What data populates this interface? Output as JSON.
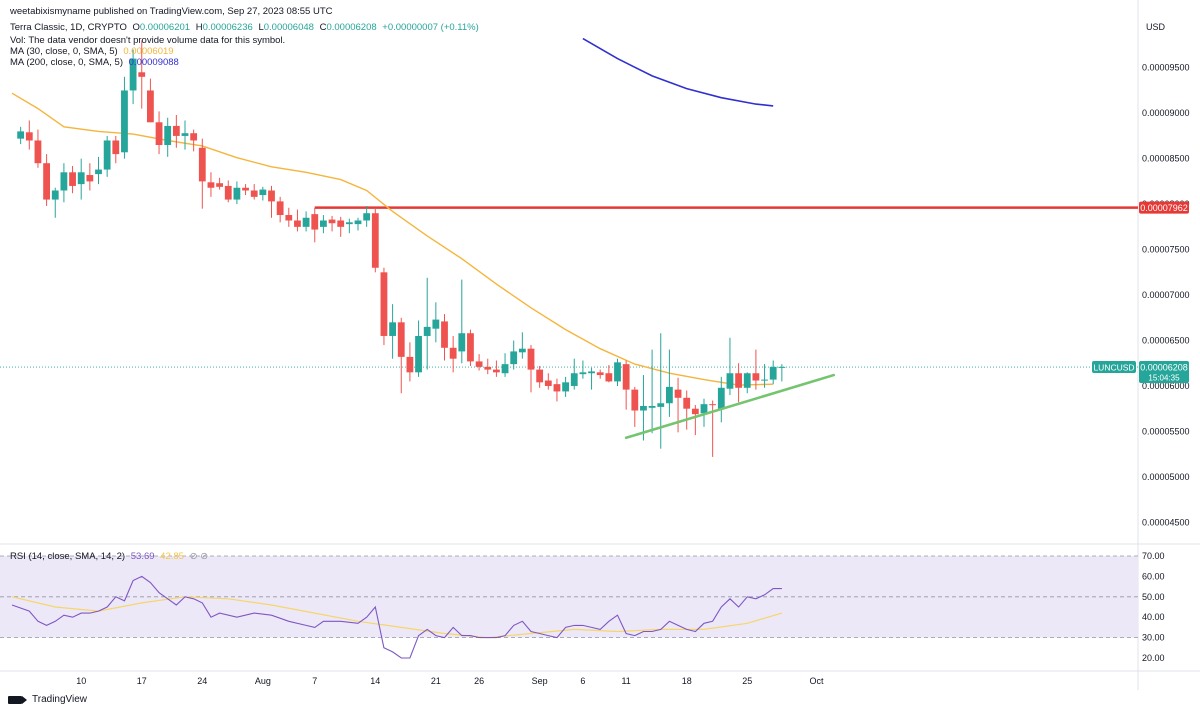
{
  "header": {
    "publisher": "weetabixismyname published on TradingView.com, Sep 27, 2023 08:55 UTC",
    "symbol_line": "Terra Classic, 1D, CRYPTO",
    "o_label": "O",
    "o_value": "0.00006201",
    "h_label": "H",
    "h_value": "0.00006236",
    "l_label": "L",
    "l_value": "0.00006048",
    "c_label": "C",
    "c_value": "0.00006208",
    "change": "+0.00000007 (+0.11%)",
    "vol_note": "Vol: The data vendor doesn't provide volume data for this symbol.",
    "ma30_label": "MA (30, close, 0, SMA, 5)",
    "ma30_value": "0.00006019",
    "ma200_label": "MA (200, close, 0, SMA, 5)",
    "ma200_value": "0.00009088",
    "rsi_label": "RSI (14, close, SMA, 14, 2)",
    "rsi_value": "53.69",
    "rsi_ma_value": "42.85"
  },
  "footer": {
    "logo_text": "TradingView"
  },
  "colors": {
    "up": "#26a69a",
    "down": "#ef5350",
    "ma30": "#f5b53d",
    "ma200": "#3030d0",
    "resistance": "#e53935",
    "trendline": "#74c470",
    "rsi": "#7e57c2",
    "rsi_ma": "#f5d66a",
    "rsi_band": "#ede8f8",
    "price_tag": "#26a69a"
  },
  "chart_data": {
    "type": "candlestick",
    "currency": "USD",
    "price_axis": {
      "ticks": [
        "0.00009500",
        "0.00009000",
        "0.00008500",
        "0.00008000",
        "0.00007500",
        "0.00007000",
        "0.00006500",
        "0.00006000",
        "0.00005500",
        "0.00005000",
        "0.00004500"
      ],
      "tick_values": [
        9.5e-05,
        9e-05,
        8.5e-05,
        8e-05,
        7.5e-05,
        7e-05,
        6.5e-05,
        6e-05,
        5.5e-05,
        5e-05,
        4.5e-05
      ]
    },
    "x_axis": {
      "labels": [
        "10",
        "17",
        "24",
        "Aug",
        "7",
        "14",
        "21",
        "26",
        "Sep",
        "6",
        "11",
        "18",
        "25",
        "Oct"
      ],
      "label_positions": [
        8,
        15,
        22,
        29,
        35,
        42,
        49,
        54,
        61,
        66,
        71,
        78,
        85,
        93
      ]
    },
    "candles": [
      {
        "i": 1,
        "o": 8.72,
        "h": 8.85,
        "l": 8.66,
        "c": 8.8
      },
      {
        "i": 2,
        "o": 8.79,
        "h": 8.92,
        "l": 8.6,
        "c": 8.7
      },
      {
        "i": 3,
        "o": 8.7,
        "h": 8.82,
        "l": 8.4,
        "c": 8.45
      },
      {
        "i": 4,
        "o": 8.45,
        "h": 8.55,
        "l": 7.98,
        "c": 8.05
      },
      {
        "i": 5,
        "o": 8.05,
        "h": 8.18,
        "l": 7.85,
        "c": 8.15
      },
      {
        "i": 6,
        "o": 8.15,
        "h": 8.45,
        "l": 8.02,
        "c": 8.35
      },
      {
        "i": 7,
        "o": 8.35,
        "h": 8.42,
        "l": 8.12,
        "c": 8.2
      },
      {
        "i": 8,
        "o": 8.22,
        "h": 8.5,
        "l": 8.05,
        "c": 8.35
      },
      {
        "i": 9,
        "o": 8.32,
        "h": 8.45,
        "l": 8.15,
        "c": 8.25
      },
      {
        "i": 10,
        "o": 8.33,
        "h": 8.52,
        "l": 8.22,
        "c": 8.38
      },
      {
        "i": 11,
        "o": 8.38,
        "h": 8.75,
        "l": 8.3,
        "c": 8.7
      },
      {
        "i": 12,
        "o": 8.7,
        "h": 8.75,
        "l": 8.45,
        "c": 8.55
      },
      {
        "i": 13,
        "o": 8.57,
        "h": 9.4,
        "l": 8.5,
        "c": 9.25
      },
      {
        "i": 14,
        "o": 9.25,
        "h": 9.7,
        "l": 9.1,
        "c": 9.6
      },
      {
        "i": 15,
        "o": 9.45,
        "h": 9.8,
        "l": 9.05,
        "c": 9.4
      },
      {
        "i": 16,
        "o": 9.25,
        "h": 9.38,
        "l": 8.9,
        "c": 8.9
      },
      {
        "i": 17,
        "o": 8.9,
        "h": 9.02,
        "l": 8.55,
        "c": 8.65
      },
      {
        "i": 18,
        "o": 8.65,
        "h": 8.95,
        "l": 8.52,
        "c": 8.86
      },
      {
        "i": 19,
        "o": 8.86,
        "h": 8.98,
        "l": 8.62,
        "c": 8.75
      },
      {
        "i": 20,
        "o": 8.75,
        "h": 8.92,
        "l": 8.6,
        "c": 8.78
      },
      {
        "i": 21,
        "o": 8.78,
        "h": 8.82,
        "l": 8.58,
        "c": 8.7
      },
      {
        "i": 22,
        "o": 8.62,
        "h": 8.72,
        "l": 7.95,
        "c": 8.25
      },
      {
        "i": 23,
        "o": 8.24,
        "h": 8.35,
        "l": 8.08,
        "c": 8.18
      },
      {
        "i": 24,
        "o": 8.23,
        "h": 8.29,
        "l": 8.16,
        "c": 8.19
      },
      {
        "i": 25,
        "o": 8.2,
        "h": 8.26,
        "l": 8.02,
        "c": 8.05
      },
      {
        "i": 26,
        "o": 8.05,
        "h": 8.25,
        "l": 8.0,
        "c": 8.18
      },
      {
        "i": 27,
        "o": 8.18,
        "h": 8.22,
        "l": 8.1,
        "c": 8.15
      },
      {
        "i": 28,
        "o": 8.15,
        "h": 8.22,
        "l": 8.05,
        "c": 8.08
      },
      {
        "i": 29,
        "o": 8.1,
        "h": 8.19,
        "l": 8.04,
        "c": 8.16
      },
      {
        "i": 30,
        "o": 8.15,
        "h": 8.2,
        "l": 7.85,
        "c": 8.03
      },
      {
        "i": 31,
        "o": 8.03,
        "h": 8.08,
        "l": 7.8,
        "c": 7.88
      },
      {
        "i": 32,
        "o": 7.88,
        "h": 7.96,
        "l": 7.75,
        "c": 7.82
      },
      {
        "i": 33,
        "o": 7.82,
        "h": 7.94,
        "l": 7.7,
        "c": 7.75
      },
      {
        "i": 34,
        "o": 7.75,
        "h": 7.92,
        "l": 7.7,
        "c": 7.85
      },
      {
        "i": 35,
        "o": 7.89,
        "h": 7.96,
        "l": 7.58,
        "c": 7.72
      },
      {
        "i": 36,
        "o": 7.75,
        "h": 7.88,
        "l": 7.68,
        "c": 7.82
      },
      {
        "i": 37,
        "o": 7.83,
        "h": 7.87,
        "l": 7.7,
        "c": 7.79
      },
      {
        "i": 38,
        "o": 7.82,
        "h": 7.86,
        "l": 7.64,
        "c": 7.75
      },
      {
        "i": 39,
        "o": 7.78,
        "h": 7.84,
        "l": 7.68,
        "c": 7.8
      },
      {
        "i": 40,
        "o": 7.78,
        "h": 7.85,
        "l": 7.71,
        "c": 7.82
      },
      {
        "i": 41,
        "o": 7.82,
        "h": 7.98,
        "l": 7.75,
        "c": 7.9
      },
      {
        "i": 42,
        "o": 7.9,
        "h": 7.96,
        "l": 7.25,
        "c": 7.3
      },
      {
        "i": 43,
        "o": 7.25,
        "h": 7.3,
        "l": 6.45,
        "c": 6.55
      },
      {
        "i": 44,
        "o": 6.55,
        "h": 6.9,
        "l": 6.3,
        "c": 6.7
      },
      {
        "i": 45,
        "o": 6.7,
        "h": 6.75,
        "l": 5.92,
        "c": 6.32
      },
      {
        "i": 46,
        "o": 6.32,
        "h": 6.48,
        "l": 6.05,
        "c": 6.15
      },
      {
        "i": 47,
        "o": 6.15,
        "h": 6.72,
        "l": 6.1,
        "c": 6.55
      },
      {
        "i": 48,
        "o": 6.55,
        "h": 7.19,
        "l": 6.18,
        "c": 6.65
      },
      {
        "i": 49,
        "o": 6.63,
        "h": 6.92,
        "l": 6.48,
        "c": 6.73
      },
      {
        "i": 50,
        "o": 6.71,
        "h": 6.79,
        "l": 6.28,
        "c": 6.42
      },
      {
        "i": 51,
        "o": 6.42,
        "h": 6.55,
        "l": 6.15,
        "c": 6.3
      },
      {
        "i": 52,
        "o": 6.38,
        "h": 7.17,
        "l": 6.25,
        "c": 6.58
      },
      {
        "i": 53,
        "o": 6.58,
        "h": 6.62,
        "l": 6.22,
        "c": 6.27
      },
      {
        "i": 54,
        "o": 6.27,
        "h": 6.35,
        "l": 6.17,
        "c": 6.21
      },
      {
        "i": 55,
        "o": 6.21,
        "h": 6.3,
        "l": 6.13,
        "c": 6.18
      },
      {
        "i": 56,
        "o": 6.18,
        "h": 6.28,
        "l": 6.1,
        "c": 6.15
      },
      {
        "i": 57,
        "o": 6.14,
        "h": 6.36,
        "l": 6.1,
        "c": 6.24
      },
      {
        "i": 58,
        "o": 6.24,
        "h": 6.5,
        "l": 6.18,
        "c": 6.38
      },
      {
        "i": 59,
        "o": 6.37,
        "h": 6.59,
        "l": 6.3,
        "c": 6.41
      },
      {
        "i": 60,
        "o": 6.41,
        "h": 6.45,
        "l": 5.93,
        "c": 6.18
      },
      {
        "i": 61,
        "o": 6.18,
        "h": 6.22,
        "l": 5.98,
        "c": 6.04
      },
      {
        "i": 62,
        "o": 6.06,
        "h": 6.14,
        "l": 5.96,
        "c": 6.0
      },
      {
        "i": 63,
        "o": 6.02,
        "h": 6.08,
        "l": 5.83,
        "c": 5.94
      },
      {
        "i": 64,
        "o": 5.94,
        "h": 6.1,
        "l": 5.88,
        "c": 6.04
      },
      {
        "i": 65,
        "o": 6.0,
        "h": 6.3,
        "l": 5.96,
        "c": 6.14
      },
      {
        "i": 66,
        "o": 6.13,
        "h": 6.28,
        "l": 6.08,
        "c": 6.15
      },
      {
        "i": 67,
        "o": 6.14,
        "h": 6.2,
        "l": 5.96,
        "c": 6.16
      },
      {
        "i": 68,
        "o": 6.15,
        "h": 6.18,
        "l": 6.08,
        "c": 6.12
      },
      {
        "i": 69,
        "o": 6.14,
        "h": 6.23,
        "l": 6.04,
        "c": 6.05
      },
      {
        "i": 70,
        "o": 6.05,
        "h": 6.3,
        "l": 6.0,
        "c": 6.26
      },
      {
        "i": 71,
        "o": 6.24,
        "h": 6.28,
        "l": 5.74,
        "c": 5.96
      },
      {
        "i": 72,
        "o": 5.96,
        "h": 5.99,
        "l": 5.55,
        "c": 5.73
      },
      {
        "i": 73,
        "o": 5.73,
        "h": 6.12,
        "l": 5.4,
        "c": 5.78
      },
      {
        "i": 74,
        "o": 5.76,
        "h": 6.4,
        "l": 5.48,
        "c": 5.78
      },
      {
        "i": 75,
        "o": 5.77,
        "h": 6.58,
        "l": 5.31,
        "c": 5.81
      },
      {
        "i": 76,
        "o": 5.81,
        "h": 6.4,
        "l": 5.66,
        "c": 5.99
      },
      {
        "i": 77,
        "o": 5.96,
        "h": 6.09,
        "l": 5.49,
        "c": 5.87
      },
      {
        "i": 78,
        "o": 5.87,
        "h": 5.95,
        "l": 5.52,
        "c": 5.75
      },
      {
        "i": 79,
        "o": 5.75,
        "h": 5.79,
        "l": 5.46,
        "c": 5.69
      },
      {
        "i": 80,
        "o": 5.7,
        "h": 5.86,
        "l": 5.55,
        "c": 5.8
      },
      {
        "i": 81,
        "o": 5.8,
        "h": 5.84,
        "l": 5.22,
        "c": 5.79
      },
      {
        "i": 82,
        "o": 5.75,
        "h": 6.1,
        "l": 5.6,
        "c": 5.98
      },
      {
        "i": 83,
        "o": 5.97,
        "h": 6.53,
        "l": 5.9,
        "c": 6.14
      },
      {
        "i": 84,
        "o": 6.14,
        "h": 6.25,
        "l": 5.82,
        "c": 5.98
      },
      {
        "i": 85,
        "o": 5.98,
        "h": 6.15,
        "l": 5.92,
        "c": 6.14
      },
      {
        "i": 86,
        "o": 6.14,
        "h": 6.4,
        "l": 5.96,
        "c": 6.06
      },
      {
        "i": 87,
        "o": 6.06,
        "h": 6.24,
        "l": 5.98,
        "c": 6.07
      },
      {
        "i": 88,
        "o": 6.07,
        "h": 6.28,
        "l": 6.02,
        "c": 6.21
      },
      {
        "i": 89,
        "o": 6.2,
        "h": 6.24,
        "l": 6.05,
        "c": 6.21
      }
    ],
    "ma30": {
      "name": "MA (30, close, 0, SMA, 5)",
      "points": [
        [
          0,
          9.22
        ],
        [
          3,
          9.05
        ],
        [
          6,
          8.85
        ],
        [
          10,
          8.8
        ],
        [
          14,
          8.77
        ],
        [
          18,
          8.7
        ],
        [
          22,
          8.64
        ],
        [
          26,
          8.51
        ],
        [
          30,
          8.41
        ],
        [
          34,
          8.35
        ],
        [
          38,
          8.27
        ],
        [
          41,
          8.15
        ],
        [
          44,
          7.92
        ],
        [
          48,
          7.65
        ],
        [
          52,
          7.4
        ],
        [
          56,
          7.12
        ],
        [
          60,
          6.86
        ],
        [
          64,
          6.62
        ],
        [
          68,
          6.41
        ],
        [
          72,
          6.24
        ],
        [
          76,
          6.14
        ],
        [
          80,
          6.07
        ],
        [
          84,
          6.01
        ],
        [
          88,
          6.02
        ]
      ]
    },
    "ma200": {
      "name": "MA (200, close, 0, SMA, 5)",
      "points": [
        [
          66,
          9.82
        ],
        [
          70,
          9.6
        ],
        [
          74,
          9.41
        ],
        [
          78,
          9.27
        ],
        [
          82,
          9.17
        ],
        [
          86,
          9.1
        ],
        [
          88,
          9.08
        ]
      ]
    },
    "resistance": {
      "value": 7.962,
      "label": "0.00007962",
      "from_index": 35,
      "to_index": 103
    },
    "trendline": {
      "from": [
        71,
        5.43
      ],
      "to": [
        95,
        6.12
      ]
    },
    "last_price": {
      "symbol": "LUNCUSD",
      "price": "0.00006208",
      "countdown": "15:04:35",
      "value": 6.208
    },
    "rsi": {
      "axis_ticks": [
        "70.00",
        "60.00",
        "50.00",
        "40.00",
        "30.00",
        "20.00"
      ],
      "axis_values": [
        70,
        60,
        50,
        40,
        30,
        20
      ],
      "band": [
        30,
        70
      ],
      "line": [
        [
          0,
          46
        ],
        [
          2,
          43
        ],
        [
          3,
          38
        ],
        [
          4,
          36
        ],
        [
          5,
          38
        ],
        [
          6,
          41
        ],
        [
          7,
          40
        ],
        [
          8,
          42
        ],
        [
          9,
          42
        ],
        [
          10,
          43
        ],
        [
          11,
          45
        ],
        [
          12,
          50
        ],
        [
          13,
          48
        ],
        [
          14,
          58
        ],
        [
          15,
          60
        ],
        [
          16,
          57
        ],
        [
          17,
          52
        ],
        [
          18,
          49
        ],
        [
          19,
          46
        ],
        [
          20,
          50
        ],
        [
          21,
          49
        ],
        [
          22,
          47
        ],
        [
          23,
          40
        ],
        [
          24,
          42
        ],
        [
          26,
          40
        ],
        [
          28,
          42
        ],
        [
          30,
          41
        ],
        [
          32,
          38
        ],
        [
          34,
          36
        ],
        [
          35,
          35
        ],
        [
          36,
          38
        ],
        [
          38,
          38
        ],
        [
          40,
          37
        ],
        [
          41,
          40
        ],
        [
          42,
          45
        ],
        [
          43,
          25
        ],
        [
          44,
          23
        ],
        [
          45,
          20
        ],
        [
          46,
          20
        ],
        [
          47,
          31
        ],
        [
          48,
          34
        ],
        [
          49,
          31
        ],
        [
          50,
          30
        ],
        [
          51,
          35
        ],
        [
          52,
          31
        ],
        [
          53,
          31
        ],
        [
          54,
          30
        ],
        [
          55,
          30
        ],
        [
          56,
          30
        ],
        [
          57,
          31
        ],
        [
          58,
          36
        ],
        [
          59,
          38
        ],
        [
          60,
          33
        ],
        [
          61,
          32
        ],
        [
          62,
          31
        ],
        [
          63,
          30
        ],
        [
          64,
          35
        ],
        [
          65,
          36
        ],
        [
          66,
          36
        ],
        [
          67,
          35
        ],
        [
          68,
          34
        ],
        [
          69,
          38
        ],
        [
          70,
          41
        ],
        [
          71,
          32
        ],
        [
          72,
          31
        ],
        [
          73,
          33
        ],
        [
          74,
          33
        ],
        [
          75,
          34
        ],
        [
          76,
          38
        ],
        [
          77,
          36
        ],
        [
          78,
          34
        ],
        [
          79,
          33
        ],
        [
          80,
          37
        ],
        [
          81,
          38
        ],
        [
          82,
          45
        ],
        [
          83,
          49
        ],
        [
          84,
          45
        ],
        [
          85,
          50
        ],
        [
          86,
          49
        ],
        [
          87,
          51
        ],
        [
          88,
          54
        ],
        [
          89,
          54
        ]
      ],
      "ma_line": [
        [
          0,
          50
        ],
        [
          5,
          45
        ],
        [
          10,
          43
        ],
        [
          15,
          47
        ],
        [
          20,
          50
        ],
        [
          25,
          49
        ],
        [
          30,
          46
        ],
        [
          35,
          42
        ],
        [
          40,
          38
        ],
        [
          45,
          35
        ],
        [
          50,
          32
        ],
        [
          55,
          30
        ],
        [
          60,
          32
        ],
        [
          65,
          34
        ],
        [
          70,
          33
        ],
        [
          75,
          34
        ],
        [
          80,
          34
        ],
        [
          85,
          37
        ],
        [
          89,
          42
        ]
      ]
    }
  }
}
